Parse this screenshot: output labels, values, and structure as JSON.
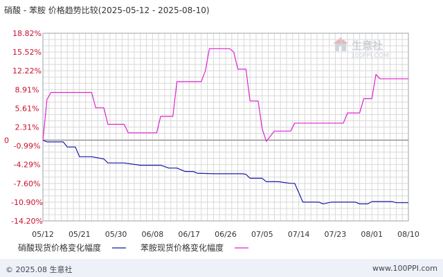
{
  "title": "硝酸 - 苯胺 价格趋势比较(2025-05-12 - 2025-08-10)",
  "watermark": {
    "name": "生意社",
    "url": "100PPI.COM"
  },
  "footer": {
    "left": "© 2025.08 生意社",
    "right": "www.100PPI.com"
  },
  "colors": {
    "series1": "#1a1aa6",
    "series2": "#e020d0",
    "grid": "#d8d8d8",
    "ytick": "#c8102e"
  },
  "chart_data": {
    "type": "line",
    "title": "硝酸 - 苯胺 价格趋势比较(2025-05-12 - 2025-08-10)",
    "xlabel": "",
    "ylabel": "",
    "x_ticks": [
      "05/12",
      "05/21",
      "05/30",
      "06/08",
      "06/17",
      "06/26",
      "07/05",
      "07/14",
      "07/23",
      "08/01",
      "08/10"
    ],
    "y_ticks": [
      "18.82%",
      "15.52%",
      "12.22%",
      "8.91%",
      "5.61%",
      "2.31%",
      "-0.99%",
      "-4.29%",
      "-7.60%",
      "-10.90%",
      "-14.20%"
    ],
    "y_tick_values": [
      18.82,
      15.52,
      12.22,
      8.91,
      5.61,
      2.31,
      -0.99,
      -4.29,
      -7.6,
      -10.9,
      -14.2
    ],
    "zero_label": "0",
    "x_range": [
      "2025-05-12",
      "2025-08-10"
    ],
    "ylim": [
      -14.2,
      18.82
    ],
    "grid": true,
    "legend_position": "bottom",
    "series": [
      {
        "name": "硝酸现货价格变化幅度",
        "color": "#1a1aa6",
        "x": [
          "2025-05-12",
          "2025-05-13",
          "2025-05-17",
          "2025-05-18",
          "2025-05-20",
          "2025-05-21",
          "2025-05-24",
          "2025-05-27",
          "2025-05-28",
          "2025-06-01",
          "2025-06-05",
          "2025-06-10",
          "2025-06-12",
          "2025-06-14",
          "2025-06-16",
          "2025-06-18",
          "2025-06-19",
          "2025-06-23",
          "2025-06-30",
          "2025-07-01",
          "2025-07-02",
          "2025-07-05",
          "2025-07-06",
          "2025-07-09",
          "2025-07-12",
          "2025-07-13",
          "2025-07-14",
          "2025-07-15",
          "2025-07-19",
          "2025-07-20",
          "2025-07-22",
          "2025-07-28",
          "2025-07-29",
          "2025-07-31",
          "2025-08-01",
          "2025-08-06",
          "2025-08-07",
          "2025-08-08",
          "2025-08-10"
        ],
        "values": [
          0,
          -0.3,
          -0.3,
          -1.2,
          -1.2,
          -2.9,
          -2.9,
          -3.3,
          -4.0,
          -4.0,
          -4.4,
          -4.4,
          -4.9,
          -4.9,
          -5.5,
          -5.5,
          -5.8,
          -5.9,
          -5.9,
          -6.0,
          -6.7,
          -6.7,
          -7.3,
          -7.3,
          -7.6,
          -7.6,
          -9.2,
          -10.9,
          -10.9,
          -11.2,
          -10.9,
          -10.9,
          -11.2,
          -11.2,
          -10.8,
          -10.8,
          -11.0,
          -11.0,
          -11.0
        ]
      },
      {
        "name": "苯胺现货价格变化幅度",
        "color": "#e020d0",
        "x": [
          "2025-05-12",
          "2025-05-13",
          "2025-05-14",
          "2025-05-24",
          "2025-05-25",
          "2025-05-27",
          "2025-05-28",
          "2025-06-01",
          "2025-06-02",
          "2025-06-09",
          "2025-06-10",
          "2025-06-13",
          "2025-06-14",
          "2025-06-20",
          "2025-06-21",
          "2025-06-22",
          "2025-06-27",
          "2025-06-28",
          "2025-06-29",
          "2025-07-01",
          "2025-07-02",
          "2025-07-04",
          "2025-07-05",
          "2025-07-06",
          "2025-07-08",
          "2025-07-12",
          "2025-07-13",
          "2025-07-25",
          "2025-07-26",
          "2025-07-29",
          "2025-07-30",
          "2025-08-01",
          "2025-08-02",
          "2025-08-03",
          "2025-08-10"
        ],
        "values": [
          0,
          7.2,
          8.4,
          8.4,
          5.7,
          5.7,
          2.8,
          2.8,
          1.3,
          1.3,
          4.2,
          4.2,
          10.3,
          10.3,
          12.2,
          16.1,
          16.1,
          15.5,
          12.5,
          12.5,
          6.9,
          6.9,
          2.0,
          -0.2,
          1.6,
          1.6,
          3.0,
          3.0,
          4.8,
          4.8,
          7.3,
          7.3,
          11.6,
          10.8,
          10.8
        ]
      }
    ]
  }
}
